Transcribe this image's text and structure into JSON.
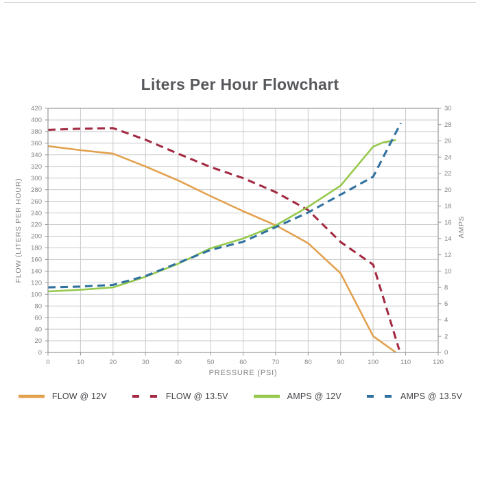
{
  "page": {
    "title": "Liters Per Hour Flowchart"
  },
  "chart_data": {
    "type": "line",
    "title": "Liters Per Hour Flowchart",
    "xlabel": "PRESSURE (PSI)",
    "ylabel_left": "FLOW (LITERS PER HOUR)",
    "ylabel_right": "AMPS",
    "xlim": [
      0,
      120
    ],
    "ylim_left": [
      0,
      420
    ],
    "ylim_right": [
      0,
      30
    ],
    "x_ticks": [
      0,
      10,
      20,
      30,
      40,
      50,
      60,
      70,
      80,
      90,
      100,
      110,
      120
    ],
    "y_left_ticks": [
      0,
      20,
      40,
      60,
      80,
      100,
      120,
      140,
      160,
      180,
      200,
      220,
      240,
      260,
      280,
      300,
      320,
      340,
      360,
      380,
      400,
      420
    ],
    "y_right_ticks": [
      0,
      2,
      4,
      6,
      8,
      10,
      12,
      14,
      16,
      18,
      20,
      22,
      24,
      26,
      28,
      30
    ],
    "grid": true,
    "legend_position": "bottom",
    "colors": {
      "grid": "#c9cacc",
      "axis_border": "#97989a",
      "tick_label": "#818285",
      "title_text": "#57585c",
      "legend_text": "#414246"
    },
    "series": [
      {
        "name": "FLOW @ 12V",
        "axis": "left",
        "color": "#E2A14E",
        "style": "solid",
        "width": 2.6,
        "points": [
          [
            0,
            355
          ],
          [
            10,
            348
          ],
          [
            20,
            342
          ],
          [
            30,
            320
          ],
          [
            40,
            296
          ],
          [
            50,
            269
          ],
          [
            60,
            243
          ],
          [
            70,
            219
          ],
          [
            80,
            188
          ],
          [
            90,
            136
          ],
          [
            100,
            28
          ],
          [
            107,
            0
          ]
        ]
      },
      {
        "name": "FLOW @ 13.5V",
        "axis": "left",
        "color": "#A32A42",
        "style": "dashed",
        "width": 3.1,
        "points": [
          [
            0,
            383
          ],
          [
            10,
            385
          ],
          [
            20,
            386
          ],
          [
            30,
            366
          ],
          [
            40,
            342
          ],
          [
            50,
            319
          ],
          [
            60,
            300
          ],
          [
            70,
            276
          ],
          [
            80,
            245
          ],
          [
            90,
            190
          ],
          [
            100,
            151
          ],
          [
            108,
            5
          ]
        ]
      },
      {
        "name": "AMPS @ 12V",
        "axis": "right",
        "color": "#95C84C",
        "style": "solid",
        "width": 2.6,
        "points": [
          [
            0,
            7.5
          ],
          [
            10,
            7.7
          ],
          [
            20,
            8.0
          ],
          [
            30,
            9.3
          ],
          [
            40,
            10.9
          ],
          [
            50,
            12.8
          ],
          [
            60,
            14.0
          ],
          [
            70,
            15.6
          ],
          [
            80,
            17.9
          ],
          [
            90,
            20.5
          ],
          [
            100,
            25.3
          ],
          [
            103,
            25.8
          ],
          [
            107,
            26.1
          ]
        ]
      },
      {
        "name": "AMPS @ 13.5V",
        "axis": "right",
        "color": "#2F71A0",
        "style": "dashed",
        "width": 3.1,
        "points": [
          [
            0,
            8.0
          ],
          [
            10,
            8.1
          ],
          [
            20,
            8.3
          ],
          [
            30,
            9.4
          ],
          [
            40,
            11.0
          ],
          [
            50,
            12.6
          ],
          [
            60,
            13.6
          ],
          [
            70,
            15.4
          ],
          [
            80,
            17.2
          ],
          [
            90,
            19.4
          ],
          [
            100,
            21.6
          ],
          [
            108.5,
            28.2
          ]
        ]
      }
    ]
  }
}
